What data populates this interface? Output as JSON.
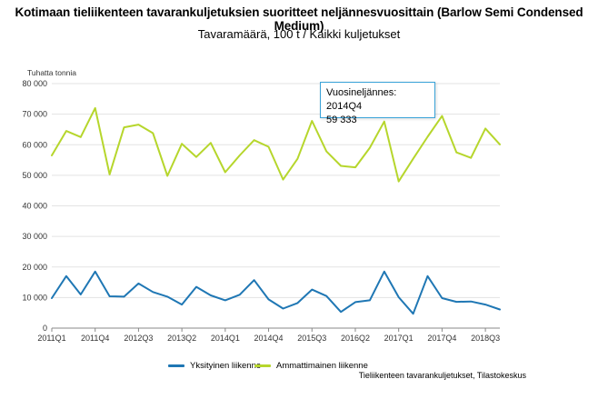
{
  "title": "Kotimaan tieliikenteen tavarankuljetuksien suoritteet neljännesvuosittain (Barlow Semi Condensed Medium)",
  "subtitle": "Tavaramäärä, 100 t / Kaikki kuljetukset",
  "source": "Tieliikenteen tavarankuljetukset, Tilastokeskus",
  "tooltip": {
    "line1": "Vuosineljännes: 2014Q4",
    "line2": "59 333"
  },
  "colors": {
    "yksityinen": "#1f77b4",
    "ammattimainen": "#b6d62c"
  },
  "chart_data": {
    "type": "line",
    "ylabel": "Tuhatta tonnia",
    "ylim": [
      0,
      80000
    ],
    "yticks": [
      "0",
      "10 000",
      "20 000",
      "30 000",
      "40 000",
      "50 000",
      "60 000",
      "70 000",
      "80 000"
    ],
    "ytick_values": [
      0,
      10000,
      20000,
      30000,
      40000,
      50000,
      60000,
      70000,
      80000
    ],
    "x": [
      "2011Q1",
      "2011Q2",
      "2011Q3",
      "2011Q4",
      "2012Q1",
      "2012Q2",
      "2012Q3",
      "2012Q4",
      "2013Q1",
      "2013Q2",
      "2013Q3",
      "2013Q4",
      "2014Q1",
      "2014Q2",
      "2014Q3",
      "2014Q4",
      "2015Q1",
      "2015Q2",
      "2015Q3",
      "2015Q4",
      "2016Q1",
      "2016Q2",
      "2016Q3",
      "2016Q4",
      "2017Q1",
      "2017Q2",
      "2017Q3",
      "2017Q4",
      "2018Q1",
      "2018Q2",
      "2018Q3",
      "2018Q4"
    ],
    "xtick_labels": [
      "2011Q1",
      "2011Q4",
      "2012Q3",
      "2013Q2",
      "2014Q1",
      "2014Q4",
      "2015Q3",
      "2016Q2",
      "2017Q1",
      "2017Q4",
      "2018Q3"
    ],
    "grid": true,
    "legend": "bottom",
    "series": [
      {
        "name": "Yksityinen liikenne",
        "values": [
          9800,
          17000,
          11000,
          18500,
          10400,
          10300,
          14600,
          11800,
          10300,
          7700,
          13500,
          10700,
          9100,
          10900,
          15700,
          9400,
          6400,
          8200,
          12600,
          10500,
          5300,
          8500,
          9100,
          18500,
          10100,
          4700,
          17000,
          9800,
          8600,
          8700,
          7700,
          6100
        ]
      },
      {
        "name": "Ammattimainen liikenne",
        "values": [
          56500,
          64500,
          62500,
          72000,
          50300,
          65700,
          66600,
          63800,
          49800,
          60300,
          56000,
          60600,
          51000,
          56500,
          61500,
          59333,
          48600,
          55400,
          67800,
          57800,
          53100,
          52600,
          59000,
          67600,
          48000,
          55400,
          62600,
          69400,
          57500,
          55700,
          65300,
          60100
        ]
      }
    ]
  }
}
